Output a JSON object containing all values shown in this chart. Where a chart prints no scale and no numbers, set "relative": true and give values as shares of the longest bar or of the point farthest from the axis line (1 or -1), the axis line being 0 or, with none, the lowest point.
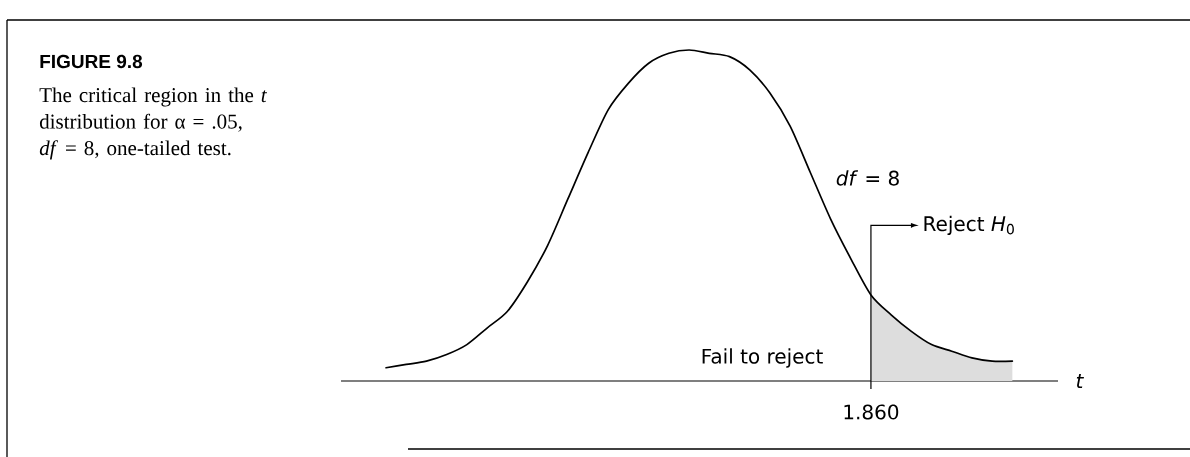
{
  "chart_data": {
    "type": "line",
    "title": "FIGURE 9.8",
    "subtitle": "The critical region in the *t* distribution for α = .05, *df* = 8, one-tailed test.",
    "xlabel": "*t*",
    "annotations": [
      "Fail to reject",
      "Reject *H*$_{0}$",
      "1.860"
    ],
    "relative": true,
    "categories": [
      null,
      null,
      null,
      null,
      null,
      null,
      null,
      null,
      null,
      null,
      null,
      null,
      null,
      null,
      null,
      null,
      null,
      null,
      null,
      null,
      null,
      null,
      null,
      null,
      null,
      null,
      null,
      null,
      null,
      null,
      null,
      null
    ],
    "series": [
      {
        "name": "*df* = 8",
        "color": "#000000",
        "values": [
          0.04,
          0.05,
          0.06,
          0.08,
          0.11,
          0.16,
          0.21,
          0.3,
          0.41,
          0.55,
          0.69,
          0.82,
          0.9,
          0.96,
          0.99,
          1,
          0.99,
          0.98,
          0.94,
          0.87,
          0.77,
          0.63,
          0.49,
          0.37,
          0.26,
          0.2,
          0.15,
          0.11,
          0.09,
          0.07,
          0.06,
          0.06
        ]
      },
      {
        "type": "area",
        "color": "#dddddd",
        "values": [
          null,
          null,
          null,
          null,
          null,
          null,
          null,
          null,
          null,
          null,
          null,
          null,
          null,
          null,
          null,
          null,
          null,
          null,
          null,
          null,
          null,
          null,
          null,
          null,
          0.26,
          0.2,
          0.15,
          0.11,
          0.09,
          0.07,
          0.06,
          0.06
        ]
      }
    ]
  }
}
